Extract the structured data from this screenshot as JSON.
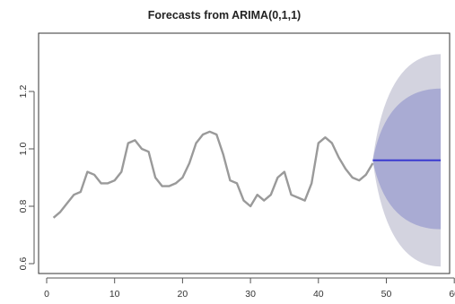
{
  "chart_data": {
    "type": "line",
    "title": "Forecasts from ARIMA(0,1,1)",
    "xlabel": "",
    "ylabel": "",
    "xlim": [
      0,
      60
    ],
    "ylim": [
      0.6,
      1.3
    ],
    "x_ticks": [
      0,
      10,
      20,
      30,
      40,
      50,
      60
    ],
    "y_ticks": [
      0.6,
      0.8,
      1.0,
      1.2
    ],
    "grid": false,
    "legend": "none",
    "colors": {
      "series": "#9a9a9a",
      "forecast": "#3a3ad0",
      "interval_80": "#a9abd3",
      "interval_95": "#d3d3df"
    },
    "series": [
      {
        "x": [
          1,
          2,
          3,
          4,
          5,
          6,
          7,
          8,
          9,
          10,
          11,
          12,
          13,
          14,
          15,
          16,
          17,
          18,
          19,
          20,
          21,
          22,
          23,
          24,
          25,
          26,
          27,
          28,
          29,
          30,
          31,
          32,
          33,
          34,
          35,
          36,
          37,
          38,
          39,
          40,
          41,
          42,
          43,
          44,
          45,
          46,
          47,
          48
        ],
        "values": [
          0.76,
          0.78,
          0.81,
          0.84,
          0.85,
          0.92,
          0.91,
          0.88,
          0.88,
          0.89,
          0.92,
          1.02,
          1.03,
          1.0,
          0.99,
          0.9,
          0.87,
          0.87,
          0.88,
          0.9,
          0.95,
          1.02,
          1.05,
          1.06,
          1.05,
          0.98,
          0.89,
          0.88,
          0.82,
          0.8,
          0.84,
          0.82,
          0.84,
          0.9,
          0.92,
          0.84,
          0.83,
          0.82,
          0.88,
          1.02,
          1.04,
          1.02,
          0.97,
          0.93,
          0.9,
          0.89,
          0.91,
          0.95
        ]
      }
    ],
    "forecast": {
      "x_start": 48,
      "x_end": 58,
      "mean": 0.96,
      "interval_80": {
        "upper_end": 1.21,
        "lower_end": 0.72
      },
      "interval_95": {
        "upper_end": 1.33,
        "lower_end": 0.59
      }
    }
  }
}
